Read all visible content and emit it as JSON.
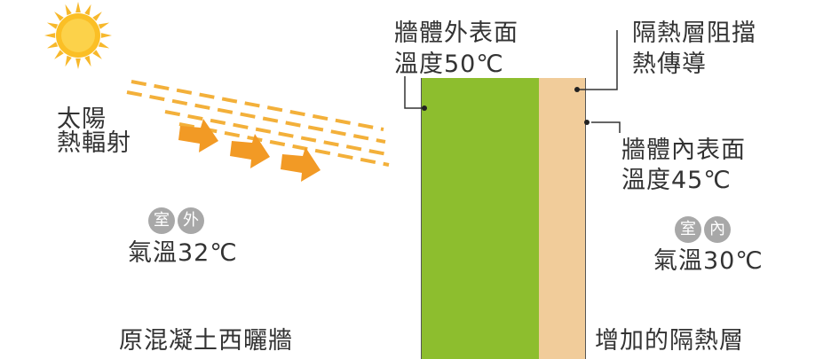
{
  "colors": {
    "concrete_wall": "#8dbe2e",
    "insulation_layer": "#f1cc9a",
    "sun_core": "#fbbf25",
    "sun_rays": "#f7b82b",
    "heat_arrow": "#f29a25",
    "dashes": "#f3b03a",
    "badge_bg": "#a8a8a8",
    "text": "#333333"
  },
  "icons": {
    "sun": "sun-icon",
    "heat_arrow": "arrow-right-icon"
  },
  "labels": {
    "sun_radiation_line1": "太陽",
    "sun_radiation_line2": "熱輻射",
    "outer_surface_line1": "牆體外表面",
    "outer_surface_line2": "溫度50℃",
    "insulation_block_line1": "隔熱層阻擋",
    "insulation_block_line2": "熱傳導",
    "inner_surface_line1": "牆體內表面",
    "inner_surface_line2": "溫度45℃",
    "outdoor_badge_1": "室",
    "outdoor_badge_2": "外",
    "outdoor_temp": "氣溫32℃",
    "indoor_badge_1": "室",
    "indoor_badge_2": "內",
    "indoor_temp": "氣溫30℃",
    "original_wall": "原混凝土西曬牆",
    "added_insulation": "增加的隔熱層"
  }
}
